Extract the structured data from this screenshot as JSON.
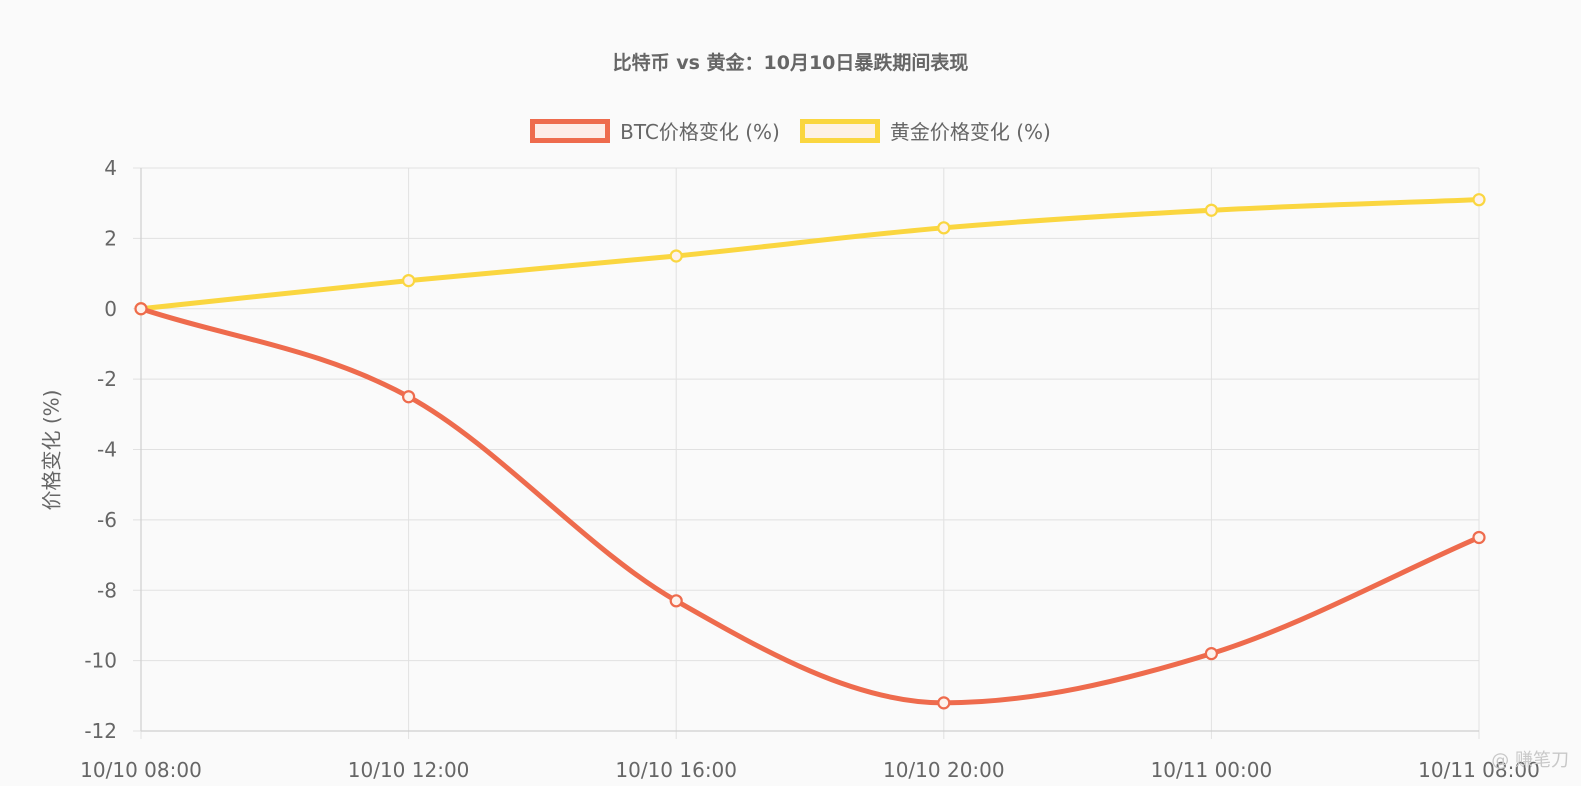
{
  "chart_data": {
    "type": "line",
    "title": "比特币 vs 黄金：10月10日暴跌期间表现",
    "xlabel": "",
    "ylabel": "价格变化 (%)",
    "categories": [
      "10/10 08:00",
      "10/10 12:00",
      "10/10 16:00",
      "10/10 20:00",
      "10/11 00:00",
      "10/11 08:00"
    ],
    "ylim": [
      -12,
      4
    ],
    "yticks": [
      "4",
      "2",
      "0",
      "-2",
      "-4",
      "-6",
      "-8",
      "-10",
      "-12"
    ],
    "grid": true,
    "legend_position": "top",
    "series": [
      {
        "name": "BTC价格变化 (%)",
        "color": "#EE6B4D",
        "values": [
          0,
          -2.5,
          -8.3,
          -11.2,
          -9.8,
          -6.5
        ]
      },
      {
        "name": "黄金价格变化 (%)",
        "color": "#FAD640",
        "values": [
          0,
          0.8,
          1.5,
          2.3,
          2.8,
          3.1
        ]
      }
    ]
  },
  "watermark": "@ 赚笔刀"
}
